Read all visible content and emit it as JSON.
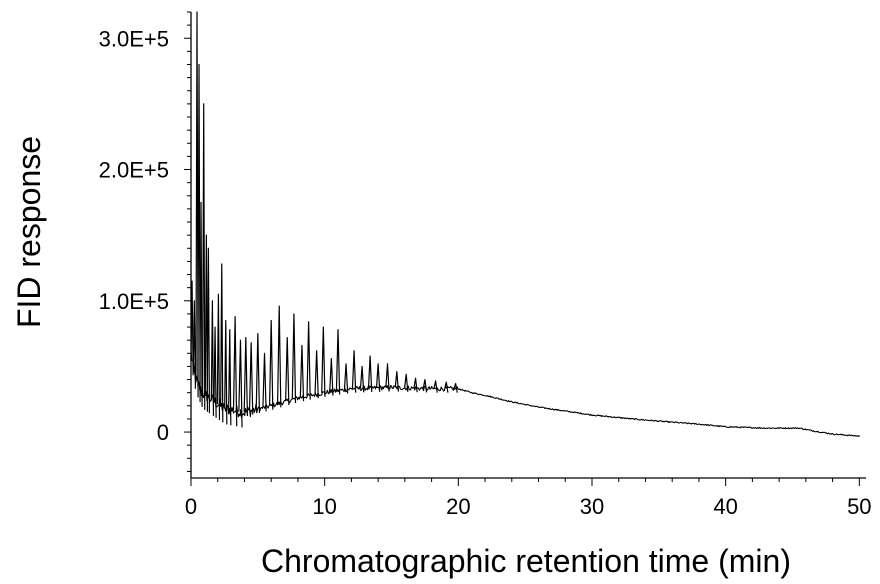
{
  "chart_data": {
    "type": "line",
    "title": "",
    "xlabel": "Chromatographic retention time (min)",
    "ylabel": "FID response",
    "xlim": [
      0,
      50.5
    ],
    "ylim": [
      -35000,
      320000
    ],
    "x_ticks": [
      0,
      10,
      20,
      30,
      40,
      50
    ],
    "x_tick_labels": [
      "0",
      "10",
      "20",
      "30",
      "40",
      "50"
    ],
    "y_ticks": [
      0,
      100000,
      200000,
      300000
    ],
    "y_tick_labels": [
      "0",
      "1.0E+5",
      "2.0E+5",
      "3.0E+5"
    ],
    "y_minor_step": 10000,
    "x_minor_step": 2,
    "grid": false,
    "legend": "none",
    "line_color": "#000000",
    "baseline": [
      [
        0,
        60000
      ],
      [
        0.3,
        42000
      ],
      [
        0.8,
        30000
      ],
      [
        1.5,
        25000
      ],
      [
        2.5,
        18000
      ],
      [
        4,
        15000
      ],
      [
        6,
        20000
      ],
      [
        8,
        26000
      ],
      [
        10,
        30000
      ],
      [
        12,
        33000
      ],
      [
        15,
        34000
      ],
      [
        18,
        33000
      ],
      [
        20,
        33000
      ],
      [
        21,
        30000
      ],
      [
        22,
        28000
      ],
      [
        24,
        23000
      ],
      [
        26,
        19000
      ],
      [
        28,
        16000
      ],
      [
        30,
        13000
      ],
      [
        33,
        10000
      ],
      [
        36,
        7500
      ],
      [
        38,
        6000
      ],
      [
        40,
        4000
      ],
      [
        43,
        3000
      ],
      [
        45.5,
        3000
      ],
      [
        46.5,
        1000
      ],
      [
        48,
        -1500
      ],
      [
        50.5,
        -3500
      ]
    ],
    "peaks": [
      [
        0.08,
        115000
      ],
      [
        0.25,
        100000
      ],
      [
        0.45,
        320000
      ],
      [
        0.6,
        280000
      ],
      [
        0.75,
        175000
      ],
      [
        0.95,
        250000
      ],
      [
        1.15,
        150000
      ],
      [
        1.3,
        140000
      ],
      [
        1.6,
        100000
      ],
      [
        1.8,
        80000
      ],
      [
        2.05,
        105000
      ],
      [
        2.3,
        128000
      ],
      [
        2.6,
        85000
      ],
      [
        2.9,
        78000
      ],
      [
        3.3,
        88000
      ],
      [
        3.7,
        70000
      ],
      [
        4.1,
        72000
      ],
      [
        4.5,
        68000
      ],
      [
        5.0,
        75000
      ],
      [
        5.5,
        60000
      ],
      [
        6.0,
        85000
      ],
      [
        6.6,
        96000
      ],
      [
        7.2,
        72000
      ],
      [
        7.7,
        90000
      ],
      [
        8.3,
        66000
      ],
      [
        8.8,
        84000
      ],
      [
        9.4,
        62000
      ],
      [
        9.9,
        80000
      ],
      [
        10.5,
        56000
      ],
      [
        11.0,
        78000
      ],
      [
        11.6,
        52000
      ],
      [
        12.2,
        62000
      ],
      [
        12.8,
        50000
      ],
      [
        13.4,
        58000
      ],
      [
        14.0,
        52000
      ],
      [
        14.7,
        52000
      ],
      [
        15.4,
        46000
      ],
      [
        16.1,
        44000
      ],
      [
        16.8,
        41000
      ],
      [
        17.5,
        40000
      ],
      [
        18.3,
        39000
      ],
      [
        19.1,
        38000
      ],
      [
        19.8,
        37000
      ]
    ]
  }
}
